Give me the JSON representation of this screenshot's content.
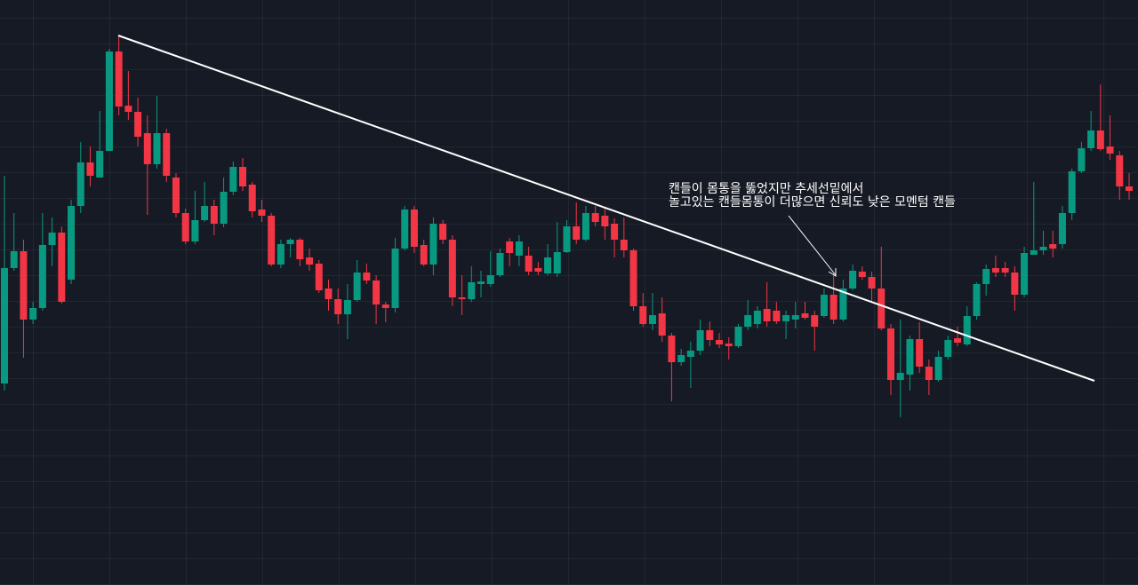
{
  "chart_data": {
    "type": "candlestick",
    "annotation": [
      "캔들이 몸통을 뚫었지만 추세선밑에서",
      "놀고있는 캔들몸통이 더많으면 신뢰도 낮은 모멘텀 캔들"
    ],
    "up_color": "#089981",
    "down_color": "#f23645",
    "ylim": [
      0,
      659
    ],
    "open": [
      227,
      357,
      376,
      299,
      312,
      383,
      397,
      344,
      427,
      476,
      459,
      489,
      601,
      540,
      533,
      509,
      474,
      509,
      459,
      419,
      387,
      411,
      427,
      407,
      443,
      471,
      451,
      423,
      416,
      361,
      384,
      389,
      369,
      362,
      334,
      322,
      305,
      321,
      352,
      343,
      316,
      312,
      379,
      423,
      383,
      361,
      407,
      389,
      324,
      322,
      339,
      339,
      349,
      387,
      371,
      371,
      357,
      351,
      351,
      375,
      404,
      389,
      419,
      416,
      407,
      389,
      377,
      314,
      294,
      306,
      281,
      251,
      257,
      264,
      287,
      276,
      272,
      269,
      291,
      294,
      311,
      309,
      297,
      299,
      306,
      304,
      303,
      327,
      299,
      334,
      353,
      347,
      334,
      289,
      231,
      237,
      277,
      246,
      231,
      257,
      278,
      271,
      303,
      339,
      357,
      357,
      352,
      327,
      372,
      377,
      384,
      384,
      419,
      466,
      492,
      512,
      494,
      484,
      449
    ],
    "high": [
      461,
      419,
      389,
      319,
      419,
      414,
      404,
      434,
      499,
      494,
      534,
      604,
      619,
      579,
      549,
      529,
      551,
      514,
      464,
      424,
      444,
      454,
      434,
      459,
      477,
      481,
      454,
      434,
      419,
      389,
      391,
      391,
      379,
      366,
      344,
      334,
      339,
      366,
      362,
      349,
      319,
      391,
      427,
      427,
      389,
      414,
      411,
      394,
      349,
      359,
      354,
      376,
      379,
      391,
      394,
      381,
      364,
      384,
      409,
      411,
      431,
      427,
      427,
      424,
      413,
      414,
      379,
      329,
      329,
      324,
      284,
      266,
      274,
      299,
      297,
      284,
      279,
      294,
      321,
      314,
      341,
      319,
      309,
      319,
      319,
      309,
      334,
      351,
      344,
      361,
      359,
      353,
      381,
      294,
      299,
      281,
      296,
      254,
      264,
      281,
      291,
      314,
      341,
      361,
      371,
      364,
      359,
      381,
      454,
      399,
      399,
      427,
      469,
      499,
      534,
      564,
      529,
      489,
      464
    ],
    "low": [
      219,
      354,
      256,
      294,
      309,
      359,
      317,
      339,
      419,
      449,
      459,
      489,
      529,
      524,
      494,
      417,
      469,
      454,
      414,
      384,
      384,
      409,
      394,
      403,
      439,
      444,
      414,
      409,
      359,
      357,
      369,
      359,
      354,
      329,
      309,
      294,
      277,
      319,
      339,
      294,
      296,
      307,
      377,
      374,
      359,
      349,
      384,
      314,
      304,
      319,
      324,
      336,
      347,
      359,
      359,
      349,
      349,
      349,
      347,
      374,
      384,
      387,
      404,
      389,
      369,
      369,
      309,
      291,
      287,
      274,
      207,
      247,
      222,
      259,
      269,
      267,
      254,
      267,
      287,
      289,
      291,
      294,
      277,
      289,
      299,
      264,
      301,
      294,
      297,
      332,
      344,
      319,
      287,
      214,
      189,
      219,
      239,
      214,
      229,
      254,
      269,
      269,
      299,
      326,
      347,
      347,
      309,
      324,
      372,
      372,
      369,
      379,
      411,
      464,
      489,
      489,
      479,
      434,
      434
    ],
    "close": [
      357,
      376,
      299,
      312,
      383,
      397,
      319,
      427,
      476,
      461,
      489,
      601,
      539,
      533,
      505,
      474,
      509,
      461,
      419,
      387,
      411,
      427,
      407,
      443,
      471,
      449,
      421,
      416,
      361,
      384,
      389,
      367,
      361,
      332,
      322,
      305,
      321,
      352,
      343,
      316,
      312,
      379,
      423,
      381,
      361,
      407,
      389,
      324,
      322,
      341,
      342,
      349,
      374,
      374,
      387,
      353,
      353,
      369,
      375,
      404,
      389,
      419,
      409,
      404,
      389,
      377,
      314,
      294,
      304,
      281,
      251,
      259,
      264,
      287,
      276,
      271,
      269,
      291,
      304,
      309,
      297,
      297,
      304,
      304,
      301,
      291,
      327,
      299,
      334,
      354,
      347,
      334,
      289,
      231,
      239,
      277,
      246,
      231,
      257,
      276,
      273,
      303,
      339,
      356,
      352,
      352,
      327,
      374,
      377,
      381,
      379,
      419,
      466,
      492,
      512,
      491,
      486,
      449,
      444
    ]
  }
}
